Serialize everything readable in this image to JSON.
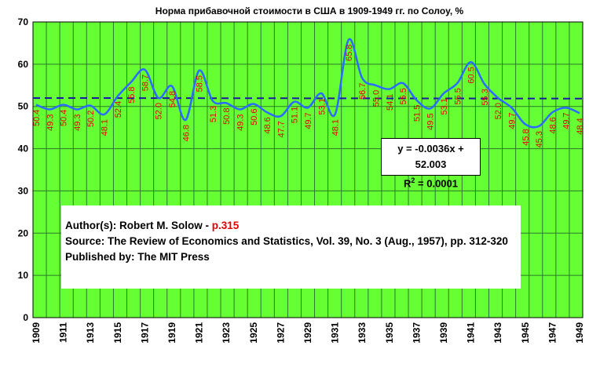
{
  "chart_data": {
    "type": "line",
    "title": "Норма прибавочной стоимости в США в 1909-1949 гг. по Солоу, %",
    "x": [
      1909,
      1910,
      1911,
      1912,
      1913,
      1914,
      1915,
      1916,
      1917,
      1918,
      1919,
      1920,
      1921,
      1922,
      1923,
      1924,
      1925,
      1926,
      1927,
      1928,
      1929,
      1930,
      1931,
      1932,
      1933,
      1934,
      1935,
      1936,
      1937,
      1938,
      1939,
      1940,
      1941,
      1942,
      1943,
      1944,
      1945,
      1946,
      1947,
      1948,
      1949
    ],
    "values": [
      50.4,
      49.3,
      50.4,
      49.3,
      50.2,
      48.1,
      52.4,
      55.8,
      58.7,
      52.0,
      54.8,
      46.8,
      58.5,
      51.3,
      50.8,
      49.3,
      50.6,
      48.6,
      47.7,
      51.1,
      49.7,
      53.1,
      48.1,
      65.8,
      56.7,
      55.0,
      54.1,
      55.5,
      51.5,
      49.5,
      53.1,
      55.5,
      60.5,
      55.3,
      52.0,
      49.7,
      45.8,
      45.3,
      48.6,
      49.7,
      48.4
    ],
    "data_labels": [
      "50.4",
      "49.3",
      "50.4",
      "49.3",
      "50.2",
      "48.1",
      "52.4",
      "55.8",
      "58.7",
      "52.0",
      "54.8",
      "46.8",
      "58.5",
      "51.3",
      "50.8",
      "49.3",
      "50.6",
      "48.6",
      "47.7",
      "51.1",
      "49.7",
      "53.1",
      "48.1",
      "65.8",
      "56.7",
      "55.0",
      "54.1",
      "55.5",
      "51.5",
      "49.5",
      "53.1",
      "55.5",
      "60.5",
      "55.3",
      "52.0",
      "49.7",
      "45.8",
      "45.3",
      "48.6",
      "49.7",
      "48.4"
    ],
    "x_tick_labels": [
      "1909",
      "1911",
      "1913",
      "1915",
      "1917",
      "1919",
      "1921",
      "1923",
      "1925",
      "1927",
      "1929",
      "1931",
      "1933",
      "1935",
      "1937",
      "1939",
      "1941",
      "1943",
      "1945",
      "1947",
      "1949"
    ],
    "y_tick_labels": [
      "0",
      "10",
      "20",
      "30",
      "40",
      "50",
      "60",
      "70"
    ],
    "ylim": [
      0,
      70
    ],
    "xlim": [
      1909,
      1949
    ],
    "trendline": {
      "slope": -0.0036,
      "intercept": 52.003
    },
    "grid": true,
    "colors": {
      "plot_bg": "#66ff33",
      "gridline": "#2a7a2a",
      "line": "#2b6bff",
      "trend": "#1a1aa0",
      "label": "#e00000"
    }
  },
  "equation": {
    "line1": "y = -0.0036x + 52.003",
    "r_prefix": "R",
    "r_exp": "2",
    "r_suffix": " = 0.0001"
  },
  "source": {
    "author_prefix": "Author(s): Robert M. Solow - ",
    "author_page": "p.315",
    "source_line": "Source: The Review of Economics and Statistics, Vol. 39, No. 3 (Aug., 1957), pp. 312-320",
    "publisher": "Published by: The MIT Press"
  }
}
